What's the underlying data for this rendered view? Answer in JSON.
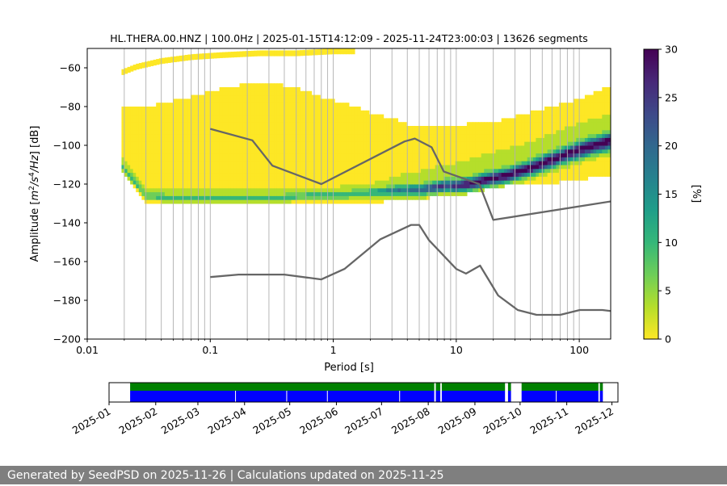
{
  "chart_data": {
    "type": "heatmap",
    "title": "HL.THERA.00.HNZ | 100.0Hz | 2025-01-15T14:12:09 - 2025-11-24T23:00:03 | 13626 segments",
    "xlabel": "Period [s]",
    "ylabel_parts": [
      "Amplitude [",
      "m",
      "2",
      "/",
      "s",
      "4",
      "/",
      "Hz",
      "] [dB]"
    ],
    "xscale": "log",
    "xlim": [
      0.01,
      180
    ],
    "ylim": [
      -200,
      -50
    ],
    "grid": "x-log-minor",
    "x_tick_labels": [
      {
        "value": 0.01,
        "label": "0.01"
      },
      {
        "value": 0.1,
        "label": "0.1"
      },
      {
        "value": 1,
        "label": "1"
      },
      {
        "value": 10,
        "label": "10"
      },
      {
        "value": 100,
        "label": "100"
      }
    ],
    "y_ticks": [
      -200,
      -180,
      -160,
      -140,
      -120,
      -100,
      -80,
      -60
    ],
    "y_tick_labels": [
      "−200",
      "−180",
      "−160",
      "−140",
      "−120",
      "−100",
      "−80",
      "−60"
    ],
    "colorbar": {
      "label": "[%]",
      "range": [
        0,
        30
      ],
      "ticks": [
        0,
        5,
        10,
        15,
        20,
        25,
        30
      ],
      "tick_labels": [
        "0",
        "5",
        "10",
        "15",
        "20",
        "25",
        "30"
      ],
      "colormap": "viridis-reversed",
      "colors": [
        "#fde725",
        "#b5de2b",
        "#6ece58",
        "#35b779",
        "#1f9e89",
        "#26828e",
        "#31688e",
        "#3e4989",
        "#482878",
        "#440154"
      ]
    },
    "psd_mode": {
      "period": [
        0.019,
        0.03,
        0.05,
        0.08,
        0.12,
        0.2,
        0.35,
        0.6,
        1,
        1.5,
        2.5,
        3.5,
        5,
        6.5,
        8,
        10,
        13,
        17,
        25,
        40,
        70,
        120,
        180
      ],
      "db": [
        -110,
        -126,
        -127,
        -127,
        -127,
        -127,
        -127,
        -126,
        -126,
        -125,
        -124,
        -123,
        -123,
        -122,
        -121,
        -121,
        -120,
        -118,
        -116,
        -112,
        -106,
        -101,
        -98
      ]
    },
    "psd_upper": {
      "period": [
        0.019,
        0.03,
        0.05,
        0.08,
        0.12,
        0.2,
        0.3,
        0.5,
        0.8,
        1.2,
        2,
        3,
        4,
        5,
        6,
        8,
        12,
        20,
        35,
        60,
        100,
        180
      ],
      "db": [
        -81,
        -81,
        -78,
        -75,
        -72,
        -69,
        -69,
        -71,
        -76,
        -79,
        -84,
        -87,
        -90,
        -91,
        -90,
        -90,
        -90,
        -89,
        -85,
        -81,
        -77,
        -70
      ]
    },
    "psd_lower": {
      "period": [
        0.019,
        0.03,
        0.05,
        0.08,
        0.12,
        0.2,
        0.35,
        0.6,
        1,
        1.5,
        2.5,
        4,
        6,
        9,
        12,
        17,
        25,
        40,
        70,
        120,
        180
      ],
      "db": [
        -112,
        -129,
        -130,
        -130,
        -130,
        -130,
        -130,
        -130,
        -130,
        -129,
        -128,
        -127,
        -126,
        -125,
        -124,
        -122,
        -120,
        -119,
        -118,
        -116,
        -115
      ]
    },
    "psd_upper_sparse": {
      "period": [
        0.019,
        0.025,
        0.04,
        0.07,
        0.12,
        0.25,
        0.5,
        1,
        1.5
      ],
      "db": [
        -62,
        -59,
        -56,
        -54,
        -53,
        -52,
        -52,
        -51,
        -51
      ]
    },
    "nhnm": {
      "period": [
        0.1,
        0.22,
        0.32,
        0.8,
        3.8,
        4.6,
        6.3,
        7.9,
        15.4,
        20,
        354.8
      ],
      "db": [
        -91.5,
        -97.4,
        -110.5,
        -120,
        -98,
        -96.5,
        -101,
        -113.5,
        -120,
        -138.5,
        -126
      ]
    },
    "nlnm": {
      "period": [
        0.1,
        0.17,
        0.4,
        0.8,
        1.24,
        2.4,
        4.3,
        5,
        6,
        10,
        12,
        15.6,
        21.9,
        31.6,
        45,
        70,
        101,
        154,
        328
      ],
      "db": [
        -168,
        -166.7,
        -166.7,
        -169.2,
        -163.7,
        -148.6,
        -141.1,
        -141.1,
        -149,
        -163.8,
        -166.2,
        -162.1,
        -177.5,
        -185,
        -187.5,
        -187.5,
        -185,
        -185,
        -187.5
      ]
    },
    "availability": {
      "date_axis": {
        "start": "2025-01-01",
        "end": "2025-12-05",
        "tick_dates": [
          "2025-01-01",
          "2025-02-01",
          "2025-03-01",
          "2025-04-01",
          "2025-05-01",
          "2025-06-01",
          "2025-07-01",
          "2025-08-01",
          "2025-09-01",
          "2025-10-01",
          "2025-11-01",
          "2025-12-01"
        ],
        "tick_labels": [
          "2025-01",
          "2025-02",
          "2025-03",
          "2025-04",
          "2025-05",
          "2025-06",
          "2025-07",
          "2025-08",
          "2025-09",
          "2025-10",
          "2025-11",
          "2025-12"
        ]
      },
      "data_color": "#0000ff",
      "psd_color": "#008000",
      "data_segments": [
        [
          "2025-01-15",
          "2025-08-05"
        ],
        [
          "2025-08-06",
          "2025-08-09"
        ],
        [
          "2025-08-10",
          "2025-09-21"
        ],
        [
          "2025-09-23",
          "2025-09-25"
        ],
        [
          "2025-10-02",
          "2025-11-22"
        ],
        [
          "2025-11-23",
          "2025-11-25"
        ]
      ],
      "psd_segments": [
        [
          "2025-01-15",
          "2025-08-05"
        ],
        [
          "2025-08-06",
          "2025-08-09"
        ],
        [
          "2025-08-10",
          "2025-09-21"
        ],
        [
          "2025-09-23",
          "2025-09-25"
        ],
        [
          "2025-10-02",
          "2025-11-22"
        ],
        [
          "2025-11-23",
          "2025-11-25"
        ]
      ],
      "gaps": [
        "2025-03-26",
        "2025-04-29",
        "2025-05-26",
        "2025-07-13",
        "2025-10-25"
      ]
    }
  },
  "footer": {
    "text": "Generated by SeedPSD on 2025-11-26 | Calculations updated on 2025-11-25"
  }
}
